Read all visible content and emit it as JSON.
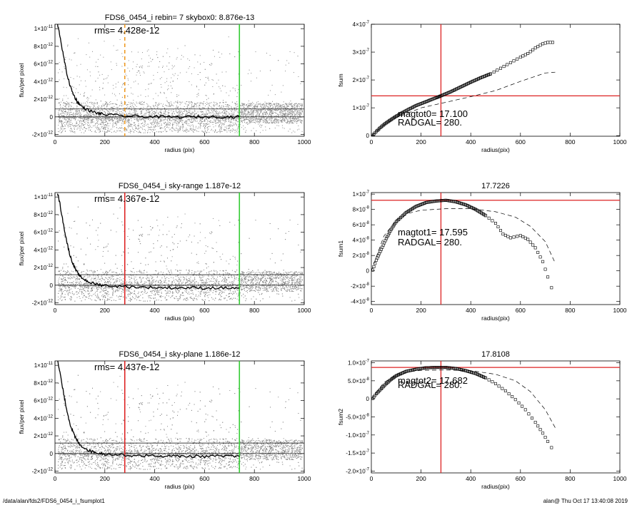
{
  "footer": {
    "path": "/data/alan/fds2/FDS6_0454_i_fsumplot1",
    "user_time": "alan@  Thu Oct 17 13:40:08 2019"
  },
  "chart_data": [
    {
      "id": "profile-skybox0",
      "type": "scatter",
      "title": "FDS6_0454_i rebin= 7    skybox0:  8.876e-13",
      "annotation": "rms= 4.428e-12",
      "xlabel": "radius (pix)",
      "ylabel": "flux/per pixel",
      "xlim": [
        0,
        1000
      ],
      "ylim": [
        -2.2e-12,
        1.05e-11
      ],
      "xticks": [
        0,
        200,
        400,
        600,
        800,
        1000
      ],
      "yticks": [
        -2e-12,
        0,
        2e-12,
        4e-12,
        6e-12,
        8e-12,
        1e-11
      ],
      "ytick_labels": [
        {
          "mant": "-2×10",
          "exp": "-12"
        },
        {
          "mant": "0",
          "exp": ""
        },
        {
          "mant": "2×10",
          "exp": "-12"
        },
        {
          "mant": "4×10",
          "exp": "-12"
        },
        {
          "mant": "6×10",
          "exp": "-12"
        },
        {
          "mant": "8×10",
          "exp": "-12"
        },
        {
          "mant": "1×10",
          "exp": "-11"
        }
      ],
      "hlines": [
        0,
        8.876e-13
      ],
      "vlines": [
        {
          "x": 280,
          "color": "#ee9922",
          "dash": true
        },
        {
          "x": 740,
          "color": "#33cc33",
          "dash": false
        }
      ],
      "profile": [
        [
          10,
          1.05e-11
        ],
        [
          20,
          9.2e-12
        ],
        [
          30,
          7.5e-12
        ],
        [
          40,
          6e-12
        ],
        [
          50,
          4.6e-12
        ],
        [
          60,
          3.6e-12
        ],
        [
          70,
          2.8e-12
        ],
        [
          80,
          2.2e-12
        ],
        [
          90,
          1.7e-12
        ],
        [
          100,
          1.35e-12
        ],
        [
          120,
          9.5e-13
        ],
        [
          140,
          6.8e-13
        ],
        [
          160,
          4.9e-13
        ],
        [
          180,
          3.6e-13
        ],
        [
          200,
          2.7e-13
        ],
        [
          250,
          1.4e-13
        ],
        [
          300,
          8e-14
        ],
        [
          350,
          4e-14
        ],
        [
          400,
          1e-14
        ],
        [
          450,
          0
        ],
        [
          500,
          -2e-14
        ],
        [
          550,
          0
        ],
        [
          600,
          -1e-14
        ],
        [
          650,
          2e-14
        ],
        [
          700,
          0
        ],
        [
          740,
          -1e-14
        ]
      ]
    },
    {
      "id": "fsum0",
      "type": "scatter",
      "title": "",
      "annotation_lines": [
        "magtot0=  17.100",
        "RADGAL=   280."
      ],
      "xlabel": "radius(pix)",
      "ylabel": "fsum",
      "xlim": [
        0,
        1000
      ],
      "ylim": [
        -2e-09,
        4e-07
      ],
      "xticks": [
        0,
        200,
        400,
        600,
        800,
        1000
      ],
      "yticks": [
        0,
        1e-07,
        2e-07,
        3e-07,
        4e-07
      ],
      "ytick_labels": [
        {
          "mant": "0",
          "exp": ""
        },
        {
          "mant": "1×10",
          "exp": "-7"
        },
        {
          "mant": "2×10",
          "exp": "-7"
        },
        {
          "mant": "3×10",
          "exp": "-7"
        },
        {
          "mant": "4×10",
          "exp": "-7"
        }
      ],
      "crosshair": {
        "x": 280,
        "y": 1.43e-07
      },
      "series": [
        {
          "style": "squares",
          "points": [
            [
              5,
              1e-09
            ],
            [
              20,
              1.5e-08
            ],
            [
              40,
              3.2e-08
            ],
            [
              60,
              4.6e-08
            ],
            [
              80,
              5.8e-08
            ],
            [
              100,
              7e-08
            ],
            [
              140,
              9e-08
            ],
            [
              180,
              1.08e-07
            ],
            [
              220,
              1.22e-07
            ],
            [
              260,
              1.36e-07
            ],
            [
              280,
              1.43e-07
            ],
            [
              320,
              1.58e-07
            ],
            [
              360,
              1.75e-07
            ],
            [
              400,
              1.92e-07
            ],
            [
              440,
              2.08e-07
            ],
            [
              480,
              2.22e-07
            ],
            [
              520,
              2.42e-07
            ],
            [
              560,
              2.62e-07
            ],
            [
              600,
              2.82e-07
            ],
            [
              630,
              2.95e-07
            ],
            [
              660,
              3.15e-07
            ],
            [
              690,
              3.3e-07
            ],
            [
              710,
              3.35e-07
            ],
            [
              740,
              3.35e-07
            ]
          ]
        },
        {
          "style": "dashed",
          "points": [
            [
              0,
              0
            ],
            [
              50,
              3.8e-08
            ],
            [
              100,
              6.4e-08
            ],
            [
              200,
              1e-07
            ],
            [
              300,
              1.2e-07
            ],
            [
              400,
              1.4e-07
            ],
            [
              500,
              1.62e-07
            ],
            [
              600,
              1.95e-07
            ],
            [
              700,
              2.25e-07
            ],
            [
              740,
              2.28e-07
            ]
          ]
        }
      ]
    },
    {
      "id": "profile-skyrange",
      "type": "scatter",
      "title": "FDS6_0454_i sky-range  1.187e-12",
      "annotation": "rms= 4.367e-12",
      "xlabel": "radius (pix)",
      "ylabel": "flux/per pixel",
      "xlim": [
        0,
        1000
      ],
      "ylim": [
        -2.2e-12,
        1.05e-11
      ],
      "xticks": [
        0,
        200,
        400,
        600,
        800,
        1000
      ],
      "yticks": [
        -2e-12,
        0,
        2e-12,
        4e-12,
        6e-12,
        8e-12,
        1e-11
      ],
      "ytick_labels": [
        {
          "mant": "-2×10",
          "exp": "-12"
        },
        {
          "mant": "0",
          "exp": ""
        },
        {
          "mant": "2×10",
          "exp": "-12"
        },
        {
          "mant": "4×10",
          "exp": "-12"
        },
        {
          "mant": "6×10",
          "exp": "-12"
        },
        {
          "mant": "8×10",
          "exp": "-12"
        },
        {
          "mant": "1×10",
          "exp": "-11"
        }
      ],
      "hlines": [
        0,
        1.187e-12
      ],
      "vlines": [
        {
          "x": 280,
          "color": "#dd2222",
          "dash": false
        },
        {
          "x": 740,
          "color": "#33cc33",
          "dash": false
        }
      ],
      "profile": [
        [
          10,
          1.05e-11
        ],
        [
          20,
          9.2e-12
        ],
        [
          30,
          7.5e-12
        ],
        [
          40,
          6e-12
        ],
        [
          50,
          4.6e-12
        ],
        [
          60,
          3.4e-12
        ],
        [
          70,
          2.6e-12
        ],
        [
          80,
          1.9e-12
        ],
        [
          90,
          1.4e-12
        ],
        [
          100,
          1e-12
        ],
        [
          120,
          6e-13
        ],
        [
          140,
          3.2e-13
        ],
        [
          160,
          1.5e-13
        ],
        [
          180,
          5e-14
        ],
        [
          200,
          -3e-14
        ],
        [
          250,
          -1.2e-13
        ],
        [
          300,
          -1.8e-13
        ],
        [
          350,
          -2.3e-13
        ],
        [
          400,
          -2.6e-13
        ],
        [
          450,
          -2.9e-13
        ],
        [
          500,
          -3e-13
        ],
        [
          550,
          -2.9e-13
        ],
        [
          600,
          -3.2e-13
        ],
        [
          650,
          -3e-13
        ],
        [
          700,
          -3.3e-13
        ],
        [
          740,
          -3.2e-13
        ]
      ]
    },
    {
      "id": "fsum1",
      "type": "scatter",
      "title": "17.7226",
      "annotation_lines": [
        "magtot1=  17.595",
        "RADGAL=   280."
      ],
      "xlabel": "radius(pix)",
      "ylabel": "fsum1",
      "xlim": [
        0,
        1000
      ],
      "ylim": [
        -4.4e-08,
        1.02e-07
      ],
      "xticks": [
        0,
        200,
        400,
        600,
        800,
        1000
      ],
      "yticks": [
        -4e-08,
        -2e-08,
        0,
        2e-08,
        4e-08,
        6e-08,
        8e-08,
        1e-07
      ],
      "ytick_labels": [
        {
          "mant": "-4×10",
          "exp": "-8"
        },
        {
          "mant": "-2×10",
          "exp": "-8"
        },
        {
          "mant": "0",
          "exp": ""
        },
        {
          "mant": "2×10",
          "exp": "-8"
        },
        {
          "mant": "4×10",
          "exp": "-8"
        },
        {
          "mant": "6×10",
          "exp": "-8"
        },
        {
          "mant": "8×10",
          "exp": "-8"
        },
        {
          "mant": "1×10",
          "exp": "-7"
        }
      ],
      "crosshair": {
        "x": 280,
        "y": 9.2e-08
      },
      "series": [
        {
          "style": "squares",
          "points": [
            [
              5,
              1e-09
            ],
            [
              20,
              1.4e-08
            ],
            [
              40,
              2.8e-08
            ],
            [
              60,
              4.2e-08
            ],
            [
              80,
              5.4e-08
            ],
            [
              100,
              6.4e-08
            ],
            [
              140,
              7.6e-08
            ],
            [
              180,
              8.4e-08
            ],
            [
              220,
              8.9e-08
            ],
            [
              260,
              9.1e-08
            ],
            [
              300,
              9.2e-08
            ],
            [
              340,
              9e-08
            ],
            [
              380,
              8.6e-08
            ],
            [
              420,
              8e-08
            ],
            [
              460,
              7.2e-08
            ],
            [
              500,
              6.2e-08
            ],
            [
              530,
              4.8e-08
            ],
            [
              560,
              4.3e-08
            ],
            [
              600,
              4.6e-08
            ],
            [
              630,
              4.1e-08
            ],
            [
              660,
              3e-08
            ],
            [
              690,
              1.2e-08
            ],
            [
              710,
              -8e-09
            ],
            [
              725,
              -2.2e-08
            ],
            [
              740,
              -3.5e-08
            ]
          ]
        },
        {
          "style": "dashed",
          "points": [
            [
              0,
              0
            ],
            [
              50,
              4.5e-08
            ],
            [
              100,
              6.6e-08
            ],
            [
              150,
              7.5e-08
            ],
            [
              200,
              7.9e-08
            ],
            [
              300,
              8.1e-08
            ],
            [
              400,
              8.1e-08
            ],
            [
              500,
              7.7e-08
            ],
            [
              580,
              7e-08
            ],
            [
              640,
              5.8e-08
            ],
            [
              700,
              3.8e-08
            ],
            [
              740,
              1e-08
            ]
          ]
        }
      ]
    },
    {
      "id": "profile-skyplane",
      "type": "scatter",
      "title": "FDS6_0454_i sky-plane  1.186e-12",
      "annotation": "rms= 4.437e-12",
      "xlabel": "radius (pix)",
      "ylabel": "flux/per pixel",
      "xlim": [
        0,
        1000
      ],
      "ylim": [
        -2.2e-12,
        1.05e-11
      ],
      "xticks": [
        0,
        200,
        400,
        600,
        800,
        1000
      ],
      "yticks": [
        -2e-12,
        0,
        2e-12,
        4e-12,
        6e-12,
        8e-12,
        1e-11
      ],
      "ytick_labels": [
        {
          "mant": "-2×10",
          "exp": "-12"
        },
        {
          "mant": "0",
          "exp": ""
        },
        {
          "mant": "2×10",
          "exp": "-12"
        },
        {
          "mant": "4×10",
          "exp": "-12"
        },
        {
          "mant": "6×10",
          "exp": "-12"
        },
        {
          "mant": "8×10",
          "exp": "-12"
        },
        {
          "mant": "1×10",
          "exp": "-11"
        }
      ],
      "hlines": [
        0,
        1.186e-12
      ],
      "vlines": [
        {
          "x": 280,
          "color": "#dd2222",
          "dash": false
        },
        {
          "x": 740,
          "color": "#33cc33",
          "dash": false
        }
      ],
      "profile": [
        [
          10,
          1.05e-11
        ],
        [
          20,
          9.2e-12
        ],
        [
          30,
          7.5e-12
        ],
        [
          40,
          6e-12
        ],
        [
          50,
          4.6e-12
        ],
        [
          60,
          3.4e-12
        ],
        [
          70,
          2.6e-12
        ],
        [
          80,
          1.9e-12
        ],
        [
          90,
          1.4e-12
        ],
        [
          100,
          1e-12
        ],
        [
          120,
          6e-13
        ],
        [
          140,
          3e-13
        ],
        [
          160,
          1.4e-13
        ],
        [
          180,
          4e-14
        ],
        [
          200,
          -4e-14
        ],
        [
          250,
          -1.3e-13
        ],
        [
          300,
          -1.9e-13
        ],
        [
          350,
          -2.4e-13
        ],
        [
          400,
          -2.7e-13
        ],
        [
          450,
          -3e-13
        ],
        [
          500,
          -3.1e-13
        ],
        [
          550,
          -3e-13
        ],
        [
          600,
          -3.3e-13
        ],
        [
          650,
          -3.1e-13
        ],
        [
          700,
          -3.4e-13
        ],
        [
          740,
          -3.3e-13
        ]
      ]
    },
    {
      "id": "fsum2",
      "type": "scatter",
      "title": "17.8108",
      "annotation_lines": [
        "magtot2=  17.682",
        "RADGAL=   280."
      ],
      "xlabel": "radius(pix)",
      "ylabel": "fsum2",
      "xlim": [
        0,
        1000
      ],
      "ylim": [
        -2.05e-07,
        1.05e-07
      ],
      "xticks": [
        0,
        200,
        400,
        600,
        800,
        1000
      ],
      "yticks": [
        -2e-07,
        -1.5e-07,
        -1e-07,
        -5e-08,
        0,
        5e-08,
        1e-07
      ],
      "ytick_labels": [
        {
          "mant": "-2.0×10",
          "exp": "-7"
        },
        {
          "mant": "-1.5×10",
          "exp": "-7"
        },
        {
          "mant": "-1.0×10",
          "exp": "-7"
        },
        {
          "mant": "-5.0×10",
          "exp": "-8"
        },
        {
          "mant": "0",
          "exp": ""
        },
        {
          "mant": "5.0×10",
          "exp": "-8"
        },
        {
          "mant": "1.0×10",
          "exp": "-7"
        }
      ],
      "crosshair": {
        "x": 280,
        "y": 8.7e-08
      },
      "series": [
        {
          "style": "squares",
          "points": [
            [
              5,
              1e-09
            ],
            [
              20,
              1.4e-08
            ],
            [
              40,
              2.8e-08
            ],
            [
              60,
              4.2e-08
            ],
            [
              80,
              5.4e-08
            ],
            [
              100,
              6.4e-08
            ],
            [
              140,
              7.6e-08
            ],
            [
              180,
              8.2e-08
            ],
            [
              220,
              8.6e-08
            ],
            [
              260,
              8.7e-08
            ],
            [
              300,
              8.7e-08
            ],
            [
              340,
              8.4e-08
            ],
            [
              380,
              7.8e-08
            ],
            [
              420,
              7e-08
            ],
            [
              460,
              5.8e-08
            ],
            [
              500,
              4.2e-08
            ],
            [
              540,
              2.2e-08
            ],
            [
              580,
              -2e-09
            ],
            [
              620,
              -3e-08
            ],
            [
              660,
              -6.5e-08
            ],
            [
              690,
              -9.5e-08
            ],
            [
              710,
              -1.18e-07
            ],
            [
              725,
              -1.35e-07
            ],
            [
              740,
              -1.5e-07
            ]
          ]
        },
        {
          "style": "dashed",
          "points": [
            [
              0,
              0
            ],
            [
              50,
              4.5e-08
            ],
            [
              100,
              6.6e-08
            ],
            [
              150,
              7.5e-08
            ],
            [
              200,
              7.9e-08
            ],
            [
              300,
              8e-08
            ],
            [
              400,
              7.8e-08
            ],
            [
              500,
              6.8e-08
            ],
            [
              580,
              5e-08
            ],
            [
              640,
              2e-08
            ],
            [
              700,
              -3e-08
            ],
            [
              740,
              -8e-08
            ]
          ]
        }
      ]
    }
  ]
}
